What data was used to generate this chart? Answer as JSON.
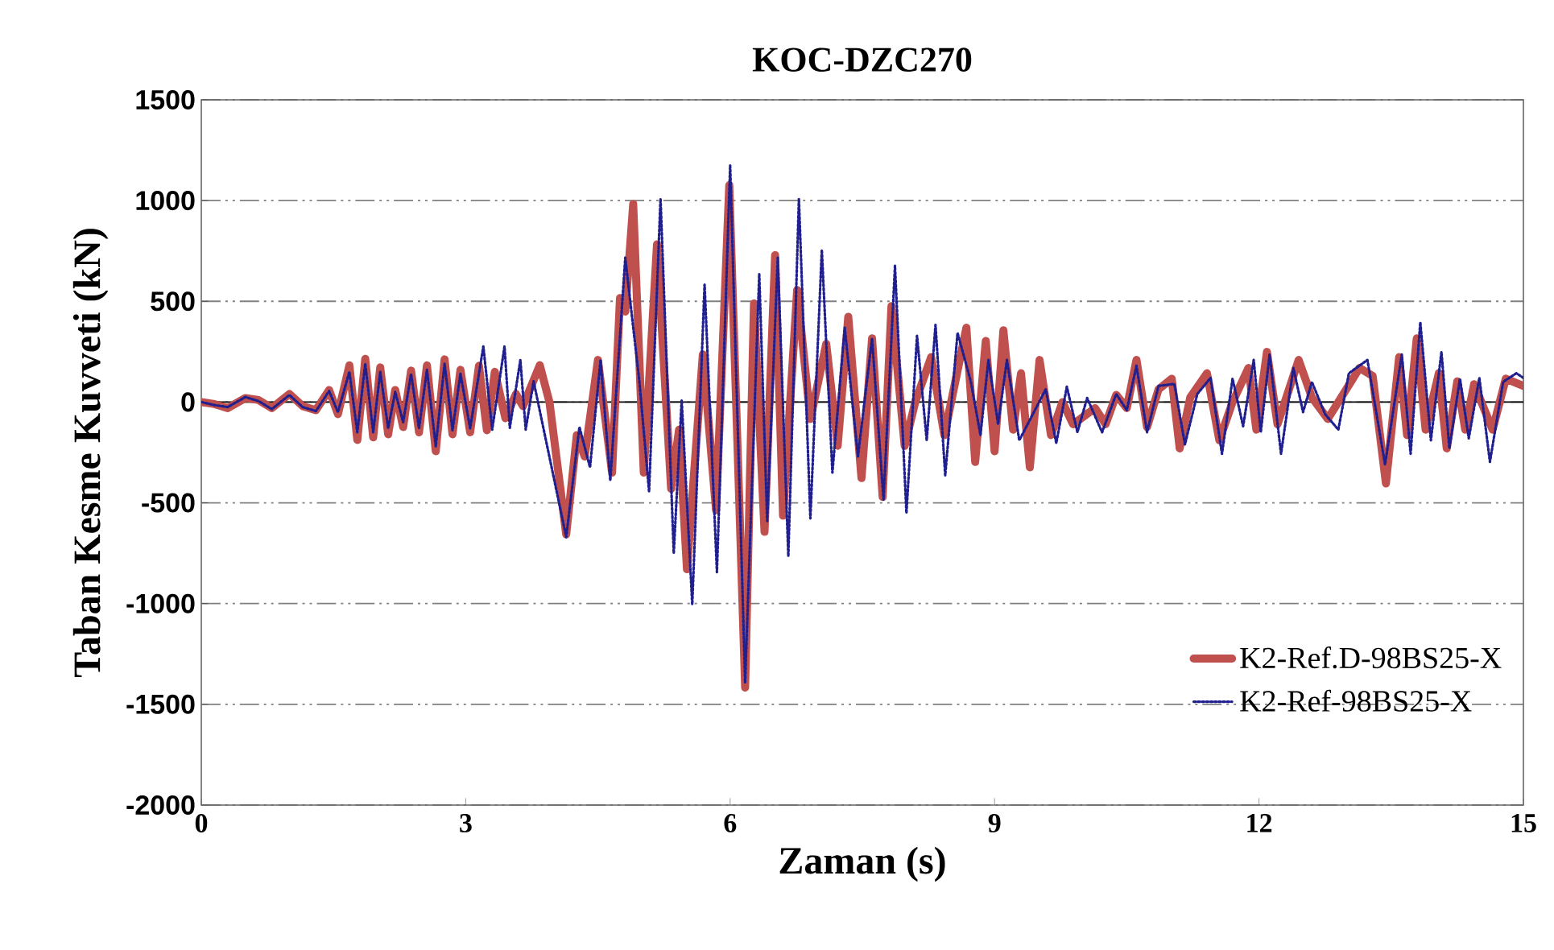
{
  "chart_data": {
    "type": "line",
    "title": "KOC-DZC270",
    "xlabel": "Zaman  (s)",
    "ylabel": "Taban Kesme Kuvveti (kN)",
    "xlim": [
      0,
      15
    ],
    "xticks": [
      0,
      3,
      6,
      9,
      12,
      15
    ],
    "ylim": [
      -2000,
      1500
    ],
    "yticks": [
      -2000,
      -1500,
      -1000,
      -500,
      0,
      500,
      1000,
      1500
    ],
    "grid": "y",
    "legend": "bottom right",
    "marker": "none",
    "series": [
      {
        "name": "K2-Ref.D-98BS25-X",
        "color": "#c0504d",
        "line_style": "solid",
        "x": [
          0,
          0.15,
          0.3,
          0.5,
          0.65,
          0.8,
          1.0,
          1.15,
          1.3,
          1.45,
          1.55,
          1.68,
          1.77,
          1.86,
          1.95,
          2.03,
          2.12,
          2.2,
          2.29,
          2.38,
          2.47,
          2.56,
          2.66,
          2.76,
          2.85,
          2.94,
          3.05,
          3.15,
          3.24,
          3.33,
          3.45,
          3.57,
          3.65,
          3.84,
          3.95,
          4.14,
          4.26,
          4.35,
          4.5,
          4.66,
          4.75,
          4.81,
          4.9,
          5.02,
          5.17,
          5.33,
          5.42,
          5.51,
          5.69,
          5.84,
          5.99,
          6.17,
          6.27,
          6.39,
          6.51,
          6.6,
          6.76,
          6.91,
          7.09,
          7.22,
          7.34,
          7.49,
          7.61,
          7.73,
          7.83,
          7.98,
          8.1,
          8.28,
          8.43,
          8.68,
          8.78,
          8.9,
          9.0,
          9.1,
          9.21,
          9.3,
          9.4,
          9.51,
          9.64,
          9.77,
          9.89,
          10.14,
          10.26,
          10.38,
          10.5,
          10.61,
          10.73,
          10.86,
          11.01,
          11.1,
          11.22,
          11.41,
          11.55,
          11.7,
          11.88,
          11.97,
          12.09,
          12.21,
          12.45,
          12.6,
          12.78,
          12.9,
          13.14,
          13.29,
          13.44,
          13.59,
          13.68,
          13.79,
          13.89,
          14.04,
          14.13,
          14.25,
          14.34,
          14.44,
          14.65,
          14.8,
          15
        ],
        "values": [
          0,
          -10,
          -30,
          20,
          10,
          -30,
          40,
          -20,
          -40,
          60,
          -60,
          182,
          -188,
          214,
          -175,
          172,
          -160,
          60,
          -124,
          156,
          -150,
          182,
          -244,
          212,
          -160,
          160,
          -150,
          180,
          -140,
          150,
          -80,
          40,
          -20,
          183,
          0,
          -657,
          -164,
          -270,
          209,
          -350,
          516,
          449,
          983,
          -350,
          783,
          -430,
          -137,
          -830,
          236,
          -537,
          1076,
          -1417,
          489,
          -644,
          729,
          -564,
          556,
          -84,
          289,
          -217,
          423,
          -377,
          316,
          -471,
          476,
          -217,
          0,
          223,
          -164,
          369,
          -297,
          303,
          -244,
          356,
          -137,
          143,
          -324,
          209,
          -164,
          0,
          -110,
          -30,
          -110,
          36,
          -30,
          209,
          -124,
          63,
          116,
          -230,
          23,
          143,
          -190,
          0,
          169,
          -137,
          249,
          -110,
          209,
          23,
          -84,
          0,
          169,
          129,
          -404,
          223,
          -164,
          316,
          -137,
          143,
          -230,
          103,
          -137,
          89,
          -137,
          116,
          80
        ]
      },
      {
        "name": "K2-Ref-98BS25-X",
        "color": "#1f1f8f",
        "line_style": "dotted",
        "x": [
          0,
          0.15,
          0.3,
          0.5,
          0.65,
          0.8,
          1.0,
          1.15,
          1.3,
          1.45,
          1.55,
          1.68,
          1.77,
          1.86,
          1.95,
          2.03,
          2.12,
          2.2,
          2.29,
          2.38,
          2.47,
          2.56,
          2.66,
          2.76,
          2.85,
          2.94,
          3.05,
          3.2,
          3.3,
          3.44,
          3.5,
          3.62,
          3.68,
          3.77,
          4.14,
          4.29,
          4.41,
          4.53,
          4.64,
          4.81,
          4.97,
          5.08,
          5.21,
          5.36,
          5.45,
          5.57,
          5.71,
          5.85,
          6.0,
          6.17,
          6.33,
          6.42,
          6.54,
          6.66,
          6.78,
          6.91,
          7.04,
          7.16,
          7.3,
          7.45,
          7.61,
          7.74,
          7.87,
          8.0,
          8.12,
          8.23,
          8.33,
          8.44,
          8.58,
          8.73,
          8.84,
          8.93,
          9.04,
          9.14,
          9.28,
          9.58,
          9.7,
          9.82,
          9.94,
          10.05,
          10.22,
          10.38,
          10.5,
          10.61,
          10.73,
          10.86,
          11.04,
          11.16,
          11.3,
          11.45,
          11.58,
          11.7,
          11.82,
          11.94,
          12.02,
          12.12,
          12.25,
          12.39,
          12.5,
          12.6,
          12.75,
          12.9,
          13.02,
          13.23,
          13.43,
          13.62,
          13.72,
          13.83,
          13.95,
          14.07,
          14.16,
          14.28,
          14.38,
          14.5,
          14.62,
          14.77,
          14.92,
          15
        ],
        "values": [
          0,
          -15,
          -25,
          25,
          5,
          -35,
          35,
          -25,
          -45,
          55,
          -50,
          150,
          -150,
          190,
          -150,
          150,
          -130,
          50,
          -100,
          140,
          -130,
          160,
          -220,
          190,
          -140,
          140,
          -130,
          276,
          -137,
          276,
          -128,
          209,
          -137,
          103,
          -670,
          -124,
          -324,
          209,
          -390,
          716,
          103,
          -444,
          1009,
          -750,
          9,
          -1004,
          583,
          -844,
          1175,
          -1391,
          636,
          -590,
          716,
          -764,
          1009,
          -577,
          756,
          -350,
          369,
          -270,
          316,
          -484,
          676,
          -551,
          329,
          -190,
          383,
          -364,
          343,
          103,
          -164,
          209,
          -110,
          209,
          -190,
          63,
          -204,
          76,
          -150,
          20,
          -150,
          40,
          -40,
          180,
          -150,
          80,
          90,
          -210,
          40,
          120,
          -257,
          116,
          -120,
          209,
          -150,
          236,
          -257,
          169,
          -50,
          100,
          -60,
          -137,
          143,
          209,
          -310,
          236,
          -257,
          396,
          -190,
          249,
          -230,
          116,
          -180,
          120,
          -297,
          100,
          143,
          120
        ]
      }
    ]
  }
}
